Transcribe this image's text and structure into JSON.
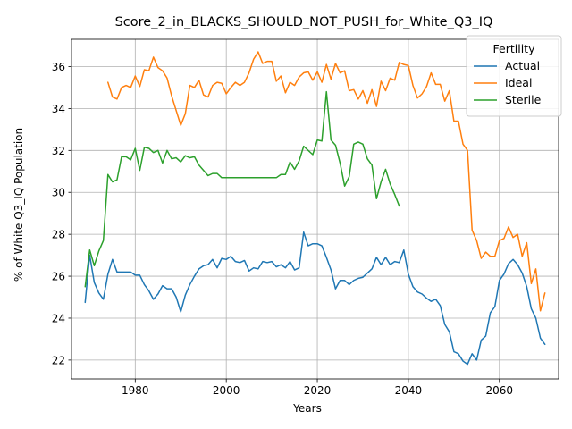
{
  "chart_data": {
    "type": "line",
    "title": "Score_2_in_BLACKS_SHOULD_NOT_PUSH_for_White_Q3_IQ",
    "xlabel": "Years",
    "ylabel": "% of White Q3_IQ Population",
    "xlim": [
      1966,
      2073
    ],
    "ylim": [
      21.1,
      37.3
    ],
    "xticks": [
      1980,
      2000,
      2020,
      2040,
      2060
    ],
    "yticks": [
      22,
      24,
      26,
      28,
      30,
      32,
      34,
      36
    ],
    "grid": true,
    "legend": {
      "title": "Fertility",
      "placement": "top-right"
    },
    "series": [
      {
        "name": "Actual",
        "color": "#1f77b4",
        "x": [
          1969,
          1970,
          1971,
          1972,
          1973,
          1974,
          1975,
          1976,
          1977,
          1978,
          1979,
          1980,
          1981,
          1982,
          1983,
          1984,
          1985,
          1986,
          1987,
          1988,
          1989,
          1990,
          1991,
          1992,
          1993,
          1994,
          1995,
          1996,
          1997,
          1998,
          1999,
          2000,
          2001,
          2002,
          2003,
          2004,
          2005,
          2006,
          2007,
          2008,
          2009,
          2010,
          2011,
          2012,
          2013,
          2014,
          2015,
          2016,
          2017,
          2018,
          2019,
          2020,
          2021,
          2022,
          2023,
          2024,
          2025,
          2026,
          2027,
          2028,
          2029,
          2030,
          2031,
          2032,
          2033,
          2034,
          2035,
          2036,
          2037,
          2038,
          2039,
          2040,
          2041,
          2042,
          2043,
          2044,
          2045,
          2046,
          2047,
          2048,
          2049,
          2050,
          2051,
          2052,
          2053,
          2054,
          2055,
          2056,
          2057,
          2058,
          2059,
          2060,
          2061,
          2062,
          2063,
          2064,
          2065,
          2066,
          2067,
          2068,
          2069,
          2070
        ],
        "values": [
          24.75,
          27.0,
          25.7,
          25.2,
          24.9,
          26.1,
          26.8,
          26.2,
          26.2,
          26.2,
          26.2,
          26.05,
          26.05,
          25.6,
          25.3,
          24.9,
          25.15,
          25.55,
          25.4,
          25.4,
          25.0,
          24.3,
          25.1,
          25.6,
          26.0,
          26.35,
          26.5,
          26.55,
          26.8,
          26.4,
          26.85,
          26.8,
          26.95,
          26.7,
          26.65,
          26.75,
          26.25,
          26.4,
          26.35,
          26.7,
          26.65,
          26.7,
          26.45,
          26.55,
          26.4,
          26.7,
          26.3,
          26.4,
          28.1,
          27.45,
          27.55,
          27.55,
          27.45,
          26.9,
          26.3,
          25.4,
          25.8,
          25.8,
          25.6,
          25.8,
          25.9,
          25.95,
          26.15,
          26.35,
          26.9,
          26.55,
          26.9,
          26.55,
          26.7,
          26.65,
          27.25,
          26.1,
          25.5,
          25.25,
          25.15,
          24.95,
          24.8,
          24.9,
          24.6,
          23.7,
          23.35,
          22.4,
          22.3,
          21.95,
          21.8,
          22.3,
          22.0,
          22.95,
          23.15,
          24.25,
          24.55,
          25.8,
          26.1,
          26.6,
          26.8,
          26.55,
          26.15,
          25.5,
          24.45,
          24.0,
          23.05,
          22.75
        ]
      },
      {
        "name": "Ideal",
        "color": "#ff7f0e",
        "x": [
          1974,
          1975,
          1976,
          1977,
          1978,
          1979,
          1980,
          1981,
          1982,
          1983,
          1984,
          1985,
          1986,
          1987,
          1988,
          1989,
          1990,
          1991,
          1992,
          1993,
          1994,
          1995,
          1996,
          1997,
          1998,
          1999,
          2000,
          2001,
          2002,
          2003,
          2004,
          2005,
          2006,
          2007,
          2008,
          2009,
          2010,
          2011,
          2012,
          2013,
          2014,
          2015,
          2016,
          2017,
          2018,
          2019,
          2020,
          2021,
          2022,
          2023,
          2024,
          2025,
          2026,
          2027,
          2028,
          2029,
          2030,
          2031,
          2032,
          2033,
          2034,
          2035,
          2036,
          2037,
          2038,
          2039,
          2040,
          2041,
          2042,
          2043,
          2044,
          2045,
          2046,
          2047,
          2048,
          2049,
          2050,
          2051,
          2052,
          2053,
          2054,
          2055,
          2056,
          2057,
          2058,
          2059,
          2060,
          2061,
          2062,
          2063,
          2064,
          2065,
          2066,
          2067,
          2068,
          2069,
          2070
        ],
        "values": [
          35.25,
          34.55,
          34.45,
          35.0,
          35.1,
          35.0,
          35.55,
          35.05,
          35.85,
          35.8,
          36.45,
          35.95,
          35.8,
          35.45,
          34.6,
          33.9,
          33.2,
          33.75,
          35.1,
          35.0,
          35.35,
          34.65,
          34.55,
          35.1,
          35.25,
          35.2,
          34.7,
          35.0,
          35.25,
          35.1,
          35.25,
          35.7,
          36.35,
          36.7,
          36.15,
          36.25,
          36.25,
          35.3,
          35.55,
          34.75,
          35.25,
          35.1,
          35.5,
          35.7,
          35.75,
          35.35,
          35.75,
          35.25,
          36.1,
          35.4,
          36.15,
          35.7,
          35.8,
          34.85,
          34.9,
          34.45,
          34.85,
          34.25,
          34.9,
          34.1,
          35.3,
          34.85,
          35.45,
          35.35,
          36.2,
          36.1,
          36.05,
          35.1,
          34.5,
          34.7,
          35.05,
          35.7,
          35.15,
          35.15,
          34.35,
          34.85,
          33.4,
          33.4,
          32.3,
          32.0,
          28.2,
          27.7,
          26.85,
          27.15,
          26.95,
          26.95,
          27.7,
          27.8,
          28.35,
          27.85,
          28.0,
          26.95,
          27.6,
          25.65,
          26.35,
          24.35,
          25.2
        ]
      },
      {
        "name": "Sterile",
        "color": "#2ca02c",
        "x": [
          1969,
          1970,
          1971,
          1972,
          1973,
          1974,
          1975,
          1976,
          1977,
          1978,
          1979,
          1980,
          1981,
          1982,
          1983,
          1984,
          1985,
          1986,
          1987,
          1988,
          1989,
          1990,
          1991,
          1992,
          1993,
          1994,
          1995,
          1996,
          1997,
          1998,
          1999,
          2000,
          2001,
          2002,
          2003,
          2004,
          2005,
          2006,
          2007,
          2008,
          2009,
          2010,
          2011,
          2012,
          2013,
          2014,
          2015,
          2016,
          2017,
          2018,
          2019,
          2020,
          2021,
          2022,
          2023,
          2024,
          2025,
          2026,
          2027,
          2028,
          2029,
          2030,
          2031,
          2032,
          2033,
          2034,
          2035,
          2036,
          2037,
          2038
        ],
        "values": [
          25.5,
          27.25,
          26.5,
          27.2,
          27.7,
          30.85,
          30.5,
          30.6,
          31.7,
          31.7,
          31.55,
          32.1,
          31.05,
          32.15,
          32.1,
          31.9,
          32.0,
          31.4,
          32.0,
          31.6,
          31.65,
          31.45,
          31.75,
          31.65,
          31.7,
          31.3,
          31.05,
          30.8,
          30.9,
          30.9,
          30.7,
          30.7,
          30.7,
          30.7,
          30.7,
          30.7,
          30.7,
          30.7,
          30.7,
          30.7,
          30.7,
          30.7,
          30.7,
          30.85,
          30.85,
          31.45,
          31.1,
          31.5,
          32.2,
          32.0,
          31.8,
          32.5,
          32.45,
          34.8,
          32.5,
          32.25,
          31.4,
          30.3,
          30.75,
          32.3,
          32.4,
          32.3,
          31.6,
          31.3,
          29.7,
          30.5,
          31.1,
          30.4,
          29.9,
          29.35
        ]
      }
    ]
  }
}
